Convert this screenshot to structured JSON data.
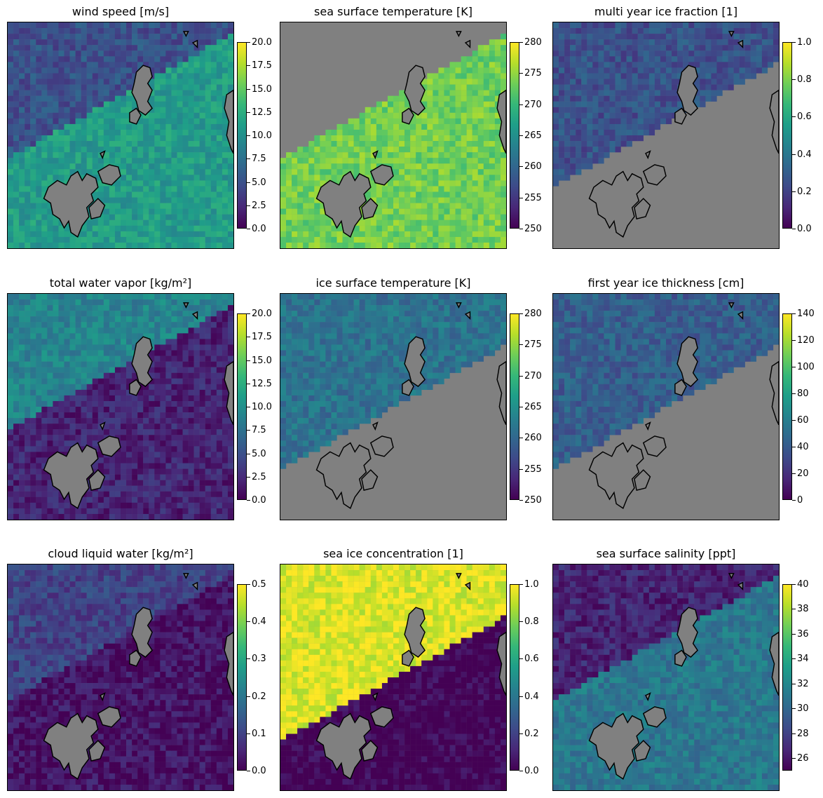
{
  "figure": {
    "colormap": "viridis",
    "colormap_stops": [
      "#440154",
      "#482878",
      "#3e4a89",
      "#31688e",
      "#26828e",
      "#1f9e89",
      "#35b779",
      "#6ece58",
      "#b5de2b",
      "#fde725"
    ],
    "land_color": "#808080",
    "coastline_color": "#000000"
  },
  "chart_data": [
    {
      "type": "heatmap",
      "title": "wind speed [m/s]",
      "clim": [
        0,
        20
      ],
      "ticks": [
        "0.0",
        "2.5",
        "5.0",
        "7.5",
        "10.0",
        "12.5",
        "15.0",
        "17.5",
        "20.0"
      ],
      "ocean_level": 0.55,
      "ice_level": 0.25,
      "ice_extent": 0.42
    },
    {
      "type": "heatmap",
      "title": "sea surface temperature [K]",
      "clim": [
        250,
        280
      ],
      "ticks": [
        "250",
        "255",
        "260",
        "265",
        "270",
        "275",
        "280"
      ],
      "ocean_level": 0.78,
      "ice_level": null,
      "ice_extent": 0.42
    },
    {
      "type": "heatmap",
      "title": "multi year ice fraction [1]",
      "clim": [
        0,
        1
      ],
      "ticks": [
        "0.0",
        "0.2",
        "0.4",
        "0.6",
        "0.8",
        "1.0"
      ],
      "ocean_level": null,
      "ice_level": 0.25,
      "ice_extent": 0.55
    },
    {
      "type": "heatmap",
      "title": "total water vapor [kg/m²]",
      "clim": [
        0,
        20
      ],
      "ticks": [
        "0.0",
        "2.5",
        "5.0",
        "7.5",
        "10.0",
        "12.5",
        "15.0",
        "17.5",
        "20.0"
      ],
      "ocean_level": 0.1,
      "ice_level": 0.45,
      "ice_extent": 0.42
    },
    {
      "type": "heatmap",
      "title": "ice surface temperature [K]",
      "clim": [
        250,
        280
      ],
      "ticks": [
        "250",
        "255",
        "260",
        "265",
        "270",
        "275",
        "280"
      ],
      "ocean_level": null,
      "ice_level": 0.38,
      "ice_extent": 0.6
    },
    {
      "type": "heatmap",
      "title": "first year ice thickness [cm]",
      "clim": [
        0,
        140
      ],
      "ticks": [
        "0",
        "20",
        "40",
        "60",
        "80",
        "100",
        "120",
        "140"
      ],
      "ocean_level": null,
      "ice_level": 0.3,
      "ice_extent": 0.6
    },
    {
      "type": "heatmap",
      "title": "cloud liquid water [kg/m²]",
      "clim": [
        0,
        0.5
      ],
      "ticks": [
        "0.0",
        "0.1",
        "0.2",
        "0.3",
        "0.4",
        "0.5"
      ],
      "ocean_level": 0.05,
      "ice_level": 0.2,
      "ice_extent": 0.42
    },
    {
      "type": "heatmap",
      "title": "sea ice concentration [1]",
      "clim": [
        0,
        1
      ],
      "ticks": [
        "0.0",
        "0.2",
        "0.4",
        "0.6",
        "0.8",
        "1.0"
      ],
      "ocean_level": 0.0,
      "ice_level": 0.95,
      "ice_extent": 0.6
    },
    {
      "type": "heatmap",
      "title": "sea surface salinity [ppt]",
      "clim": [
        25,
        40
      ],
      "ticks": [
        "26",
        "28",
        "30",
        "32",
        "34",
        "36",
        "38",
        "40"
      ],
      "ocean_level": 0.4,
      "ice_level": 0.1,
      "ice_extent": 0.42
    }
  ]
}
